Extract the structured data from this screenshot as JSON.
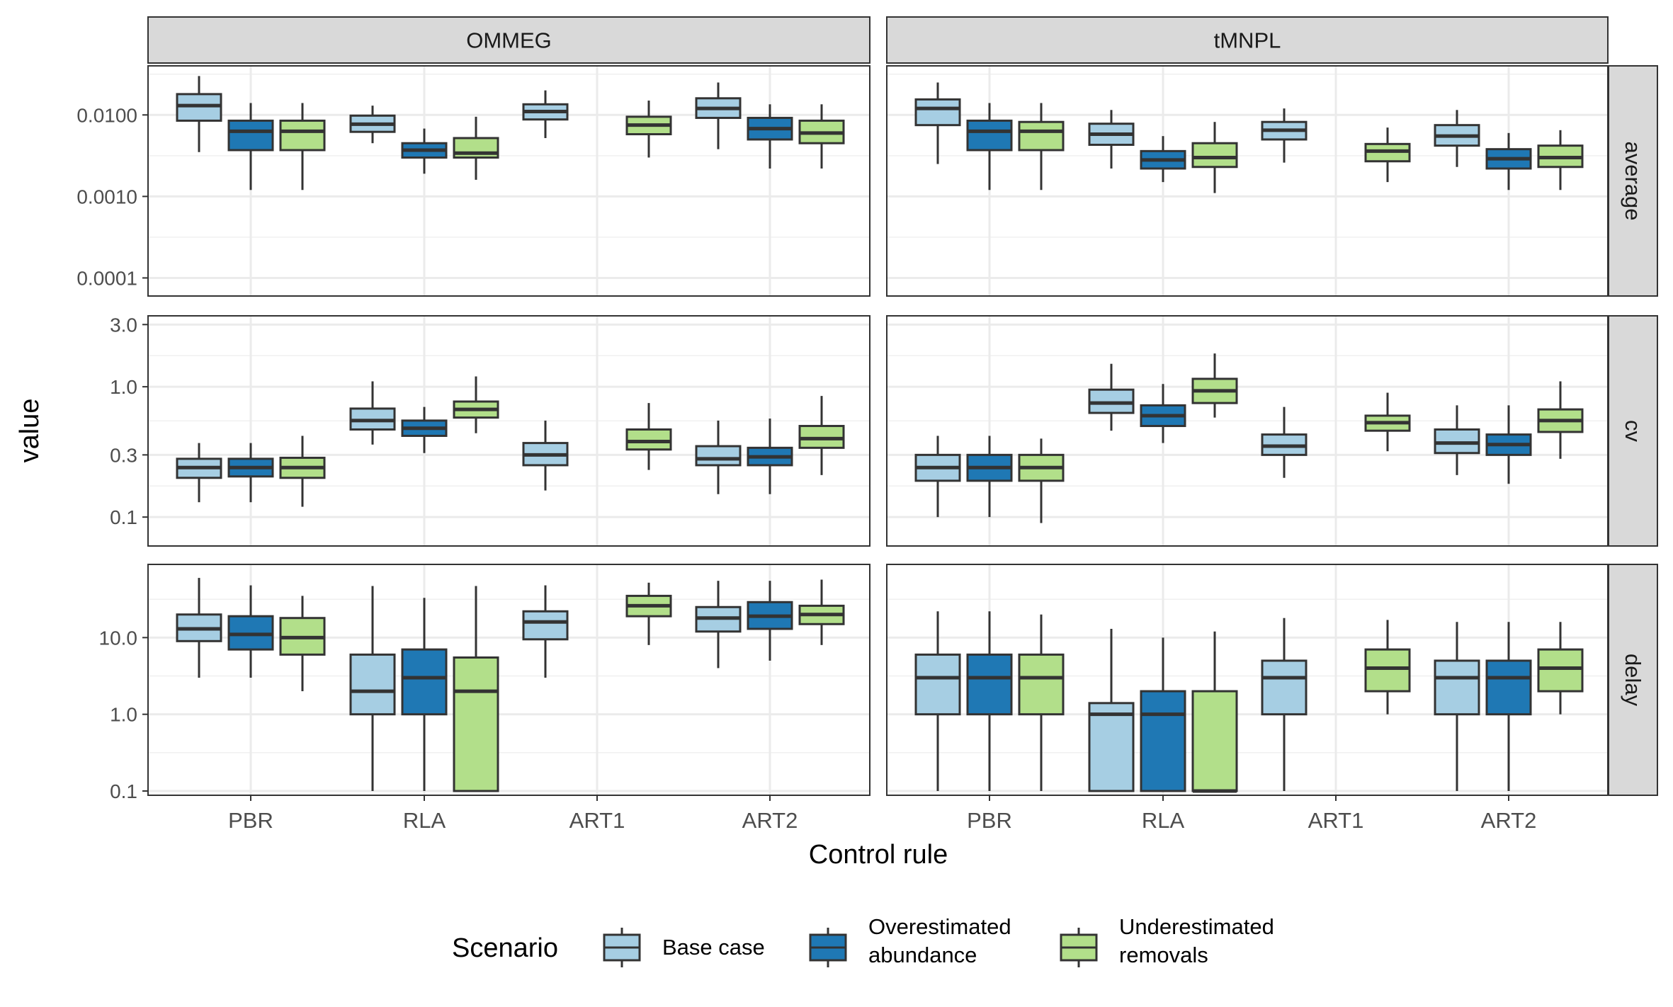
{
  "chart_data": {
    "type": "boxplot",
    "xlabel": "Control rule",
    "ylabel": "value",
    "categories": [
      "PBR",
      "RLA",
      "ART1",
      "ART2"
    ],
    "columns": [
      "OMMEG",
      "tMNPL"
    ],
    "rows": [
      {
        "name": "average",
        "scale": "log10",
        "ylim": [
          6e-05,
          0.04
        ],
        "ticks": [
          0.0001,
          0.001,
          0.01
        ],
        "tick_labels": [
          "0.0001",
          "0.0010",
          "0.0100"
        ]
      },
      {
        "name": "cv",
        "scale": "log10",
        "ylim": [
          0.06,
          3.5
        ],
        "ticks": [
          0.1,
          0.3,
          1.0,
          3.0
        ],
        "tick_labels": [
          "0.1",
          "0.3",
          "1.0",
          "3.0"
        ]
      },
      {
        "name": "delay",
        "scale": "log10",
        "ylim": [
          0.088,
          90
        ],
        "ticks": [
          0.1,
          1.0,
          10.0
        ],
        "tick_labels": [
          "0.1",
          "1.0",
          "10.0"
        ]
      }
    ],
    "legend": {
      "title": "Scenario",
      "position": "bottom",
      "entries": [
        {
          "label_lines": [
            "Base case"
          ],
          "color": "#a6cee3"
        },
        {
          "label_lines": [
            "Overestimated",
            "abundance"
          ],
          "color": "#1f78b4"
        },
        {
          "label_lines": [
            "Underestimated",
            "removals"
          ],
          "color": "#b2df8a"
        }
      ]
    },
    "series_colors": [
      "#a6cee3",
      "#1f78b4",
      "#b2df8a"
    ],
    "boxes": {
      "average": {
        "OMMEG": {
          "PBR": [
            [
              0.0035,
              0.0085,
              0.013,
              0.018,
              0.03
            ],
            [
              0.0012,
              0.0037,
              0.0063,
              0.0085,
              0.014
            ],
            [
              0.0012,
              0.0037,
              0.0063,
              0.0085,
              0.014
            ]
          ],
          "RLA": [
            [
              0.0045,
              0.0062,
              0.0077,
              0.0098,
              0.013
            ],
            [
              0.0019,
              0.003,
              0.0037,
              0.0045,
              0.0068
            ],
            [
              0.0016,
              0.003,
              0.0034,
              0.0052,
              0.0095
            ]
          ],
          "ART1": [
            [
              0.0052,
              0.0088,
              0.011,
              0.0135,
              0.02
            ],
            null,
            [
              0.003,
              0.0058,
              0.0075,
              0.0095,
              0.015
            ]
          ],
          "ART2": [
            [
              0.0038,
              0.0092,
              0.012,
              0.016,
              0.025
            ],
            [
              0.0022,
              0.005,
              0.0068,
              0.0092,
              0.0135
            ],
            [
              0.0022,
              0.0045,
              0.006,
              0.0085,
              0.0135
            ]
          ]
        },
        "tMNPL": {
          "PBR": [
            [
              0.0025,
              0.0075,
              0.012,
              0.0155,
              0.025
            ],
            [
              0.0012,
              0.0037,
              0.0063,
              0.0085,
              0.014
            ],
            [
              0.0012,
              0.0037,
              0.0063,
              0.0082,
              0.014
            ]
          ],
          "RLA": [
            [
              0.0022,
              0.0043,
              0.0058,
              0.0078,
              0.0115
            ],
            [
              0.0015,
              0.0022,
              0.0028,
              0.0036,
              0.0055
            ],
            [
              0.0011,
              0.0023,
              0.003,
              0.0045,
              0.0082
            ]
          ],
          "ART1": [
            [
              0.0026,
              0.005,
              0.0065,
              0.0082,
              0.012
            ],
            null,
            [
              0.0015,
              0.0027,
              0.0036,
              0.0044,
              0.007
            ]
          ],
          "ART2": [
            [
              0.0023,
              0.0042,
              0.0055,
              0.0075,
              0.0115
            ],
            [
              0.0012,
              0.0022,
              0.0029,
              0.0038,
              0.006
            ],
            [
              0.0012,
              0.0023,
              0.003,
              0.0042,
              0.0065
            ]
          ]
        }
      },
      "cv": {
        "OMMEG": {
          "PBR": [
            [
              0.13,
              0.2,
              0.24,
              0.28,
              0.37
            ],
            [
              0.13,
              0.205,
              0.24,
              0.28,
              0.37
            ],
            [
              0.12,
              0.2,
              0.24,
              0.285,
              0.42
            ]
          ],
          "RLA": [
            [
              0.36,
              0.47,
              0.55,
              0.68,
              1.1
            ],
            [
              0.31,
              0.42,
              0.48,
              0.55,
              0.7
            ],
            [
              0.44,
              0.58,
              0.67,
              0.77,
              1.2
            ]
          ],
          "ART1": [
            [
              0.16,
              0.25,
              0.3,
              0.37,
              0.55
            ],
            null,
            [
              0.23,
              0.33,
              0.38,
              0.47,
              0.75
            ]
          ],
          "ART2": [
            [
              0.15,
              0.25,
              0.28,
              0.35,
              0.55
            ],
            [
              0.15,
              0.25,
              0.29,
              0.34,
              0.57
            ],
            [
              0.21,
              0.34,
              0.4,
              0.5,
              0.85
            ]
          ]
        },
        "tMNPL": {
          "PBR": [
            [
              0.1,
              0.19,
              0.24,
              0.3,
              0.42
            ],
            [
              0.1,
              0.19,
              0.24,
              0.3,
              0.42
            ],
            [
              0.09,
              0.19,
              0.24,
              0.3,
              0.4
            ]
          ],
          "RLA": [
            [
              0.46,
              0.63,
              0.75,
              0.95,
              1.5
            ],
            [
              0.37,
              0.5,
              0.6,
              0.72,
              1.05
            ],
            [
              0.58,
              0.75,
              0.93,
              1.15,
              1.8
            ]
          ],
          "ART1": [
            [
              0.2,
              0.3,
              0.35,
              0.43,
              0.7
            ],
            null,
            [
              0.32,
              0.46,
              0.53,
              0.6,
              0.9
            ]
          ],
          "ART2": [
            [
              0.21,
              0.31,
              0.37,
              0.47,
              0.72
            ],
            [
              0.18,
              0.3,
              0.36,
              0.43,
              0.72
            ],
            [
              0.28,
              0.45,
              0.55,
              0.67,
              1.1
            ]
          ]
        }
      },
      "delay": {
        "OMMEG": {
          "PBR": [
            [
              3,
              9,
              13,
              20,
              60
            ],
            [
              3,
              7,
              11,
              19,
              48
            ],
            [
              2,
              6,
              10,
              18,
              35
            ]
          ],
          "RLA": [
            [
              0.1,
              1,
              2,
              6,
              47
            ],
            [
              0.1,
              1,
              3,
              7,
              33
            ],
            [
              0.1,
              0.1,
              2,
              5.5,
              47
            ]
          ],
          "ART1": [
            [
              3,
              9.5,
              16,
              22,
              48
            ],
            null,
            [
              8,
              19,
              26,
              35,
              52
            ]
          ],
          "ART2": [
            [
              4,
              12,
              18,
              25,
              55
            ],
            [
              5,
              13,
              19,
              29,
              55
            ],
            [
              8,
              15,
              20,
              26,
              57
            ]
          ]
        },
        "tMNPL": {
          "PBR": [
            [
              0.1,
              1,
              3,
              6,
              22
            ],
            [
              0.1,
              1,
              3,
              6,
              22
            ],
            [
              0.1,
              1,
              3,
              6,
              20
            ]
          ],
          "RLA": [
            [
              0.1,
              0.1,
              1,
              1.4,
              13
            ],
            [
              0.1,
              0.1,
              1,
              2,
              10
            ],
            [
              0.1,
              0.1,
              0.1,
              2,
              12
            ]
          ],
          "ART1": [
            [
              0.1,
              1,
              3,
              5,
              18
            ],
            null,
            [
              1,
              2,
              4,
              7,
              17
            ]
          ],
          "ART2": [
            [
              0.1,
              1,
              3,
              5,
              16
            ],
            [
              0.1,
              1,
              3,
              5,
              16
            ],
            [
              1,
              2,
              4,
              7,
              16
            ]
          ]
        }
      }
    }
  }
}
